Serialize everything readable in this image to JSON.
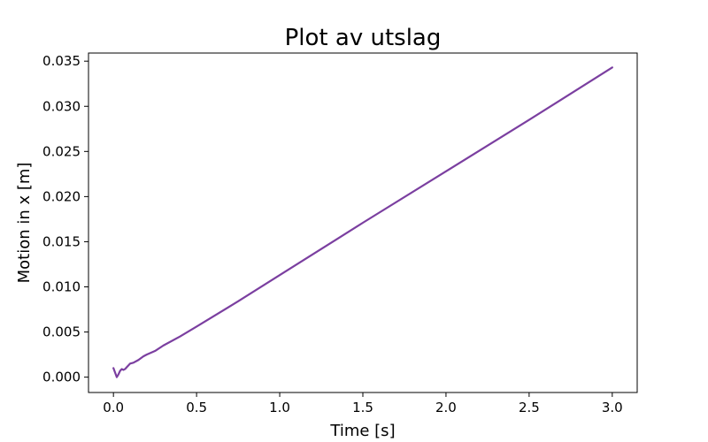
{
  "chart_data": {
    "type": "line",
    "title": "Plot av utslag",
    "xlabel": "Time [s]",
    "ylabel": "Motion in x [m]",
    "xlim": [
      -0.15,
      3.15
    ],
    "ylim": [
      -0.0017,
      0.0359
    ],
    "xticks": [
      0.0,
      0.5,
      1.0,
      1.5,
      2.0,
      2.5,
      3.0
    ],
    "xtick_labels": [
      "0.0",
      "0.5",
      "1.0",
      "1.5",
      "2.0",
      "2.5",
      "3.0"
    ],
    "yticks": [
      0.0,
      0.005,
      0.01,
      0.015,
      0.02,
      0.025,
      0.03,
      0.035
    ],
    "ytick_labels": [
      "0.000",
      "0.005",
      "0.010",
      "0.015",
      "0.020",
      "0.025",
      "0.030",
      "0.035"
    ],
    "grid": false,
    "series": [
      {
        "color": "#7b3fa0",
        "x": [
          0.0,
          0.01,
          0.02,
          0.03,
          0.04,
          0.05,
          0.06,
          0.07,
          0.08,
          0.09,
          0.1,
          0.12,
          0.15,
          0.18,
          0.2,
          0.25,
          0.3,
          0.4,
          0.5,
          0.75,
          1.0,
          1.5,
          2.0,
          2.5,
          3.0
        ],
        "y": [
          0.001,
          0.0005,
          0.0,
          0.0003,
          0.0007,
          0.0009,
          0.0008,
          0.0009,
          0.0011,
          0.0013,
          0.0015,
          0.0016,
          0.0019,
          0.0023,
          0.0025,
          0.0029,
          0.0035,
          0.0045,
          0.0056,
          0.0084,
          0.0113,
          0.0171,
          0.0228,
          0.0285,
          0.0343
        ]
      }
    ]
  }
}
